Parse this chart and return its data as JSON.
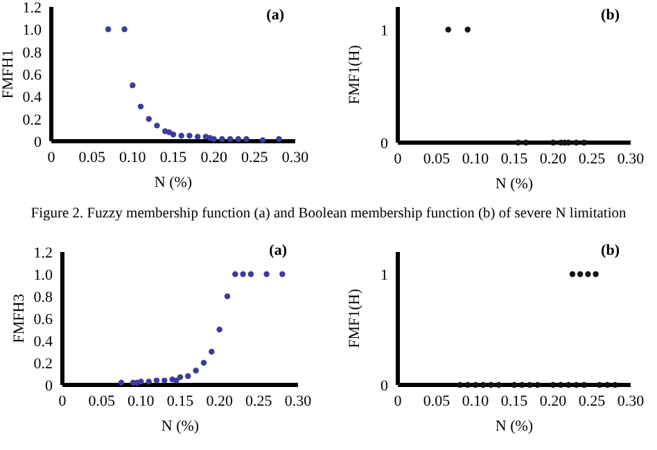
{
  "chart_data": [
    {
      "type": "scatter",
      "xlabel": "N (%)",
      "ylabel": "FMFH1",
      "annotations": [
        "(a)",
        "Figure 2. Fuzzy membership function (a) and Boolean membership function (b) of severe N limitation"
      ],
      "marker": "circle",
      "grid": false,
      "xlim": [
        0,
        0.3
      ],
      "ylim": [
        0,
        1.2
      ],
      "xticks": [
        0,
        0.05,
        {
          "value": 0.1,
          "label": "0.10"
        },
        0.15,
        {
          "value": 0.2,
          "label": "0.20"
        },
        0.25,
        {
          "value": 0.3,
          "label": "0.30"
        }
      ],
      "yticks": [
        0,
        0.2,
        0.4,
        0.6,
        0.8,
        {
          "value": 1,
          "label": "1.0"
        },
        1.2
      ],
      "series": [
        {
          "color": "#3b3b9e",
          "x": [
            0.07,
            0.09,
            0.1,
            0.11,
            0.12,
            0.13,
            0.14,
            0.145,
            0.15,
            0.16,
            0.17,
            0.18,
            0.19,
            0.195,
            0.2,
            0.21,
            0.22,
            0.23,
            0.24,
            0.26,
            0.28
          ],
          "values": [
            1.0,
            1.0,
            0.5,
            0.31,
            0.2,
            0.14,
            0.09,
            0.08,
            0.06,
            0.05,
            0.05,
            0.04,
            0.04,
            0.03,
            0.02,
            0.02,
            0.02,
            0.02,
            0.02,
            0.01,
            0.02
          ]
        }
      ]
    },
    {
      "type": "scatter",
      "xlabel": "N (%)",
      "ylabel": "FMF1(H)",
      "annotations": [
        "(b)"
      ],
      "marker": "circle",
      "grid": false,
      "xlim": [
        0,
        0.3
      ],
      "ylim": [
        0,
        1.2
      ],
      "xticks": [
        0,
        0.05,
        {
          "value": 0.1,
          "label": "0.10"
        },
        0.15,
        {
          "value": 0.2,
          "label": "0.20"
        },
        0.25,
        {
          "value": 0.3,
          "label": "0.30"
        }
      ],
      "yticks": [
        0,
        1
      ],
      "series": [
        {
          "color": "#111111",
          "x": [
            0.065,
            0.09,
            0.155,
            0.165,
            0.2,
            0.21,
            0.215,
            0.22,
            0.23,
            0.24
          ],
          "values": [
            1,
            1,
            0,
            0,
            0,
            0,
            0,
            0,
            0,
            0
          ]
        }
      ]
    },
    {
      "type": "scatter",
      "xlabel": "N (%)",
      "ylabel": "FMFH3",
      "annotations": [
        "(a)"
      ],
      "marker": "circle",
      "grid": false,
      "xlim": [
        0,
        0.3
      ],
      "ylim": [
        0,
        1.2
      ],
      "xticks": [
        0,
        0.05,
        {
          "value": 0.1,
          "label": "0.10"
        },
        0.15,
        {
          "value": 0.2,
          "label": "0.20"
        },
        0.25,
        {
          "value": 0.3,
          "label": "0.30"
        }
      ],
      "yticks": [
        0,
        0.2,
        0.4,
        0.6,
        0.8,
        {
          "value": 1,
          "label": "1.0"
        },
        1.2
      ],
      "series": [
        {
          "color": "#3b3b9e",
          "x": [
            0.075,
            0.09,
            0.095,
            0.1,
            0.11,
            0.12,
            0.13,
            0.14,
            0.145,
            0.15,
            0.16,
            0.17,
            0.18,
            0.19,
            0.2,
            0.21,
            0.22,
            0.23,
            0.24,
            0.26,
            0.28
          ],
          "values": [
            0.02,
            0.02,
            0.02,
            0.03,
            0.03,
            0.04,
            0.04,
            0.05,
            0.04,
            0.07,
            0.08,
            0.13,
            0.2,
            0.3,
            0.5,
            0.8,
            1.0,
            1.0,
            1.0,
            1.0,
            1.0
          ]
        }
      ]
    },
    {
      "type": "scatter",
      "xlabel": "N (%)",
      "ylabel": "FMF1(H)",
      "annotations": [
        "(b)"
      ],
      "marker": "circle",
      "grid": false,
      "xlim": [
        0,
        0.3
      ],
      "ylim": [
        0,
        1.2
      ],
      "xticks": [
        0,
        0.05,
        {
          "value": 0.1,
          "label": "0.10"
        },
        0.15,
        {
          "value": 0.2,
          "label": "0.20"
        },
        0.25,
        {
          "value": 0.3,
          "label": "0.30"
        }
      ],
      "yticks": [
        0,
        1
      ],
      "series": [
        {
          "color": "#111111",
          "x": [
            0.08,
            0.09,
            0.1,
            0.11,
            0.12,
            0.13,
            0.15,
            0.16,
            0.17,
            0.18,
            0.2,
            0.21,
            0.22,
            0.23,
            0.24,
            0.26,
            0.27,
            0.28,
            0.225,
            0.235,
            0.245,
            0.255
          ],
          "values": [
            0,
            0,
            0,
            0,
            0,
            0,
            0,
            0,
            0,
            0,
            0,
            0,
            0,
            0,
            0,
            0,
            0,
            0,
            1,
            1,
            1,
            1
          ]
        }
      ]
    }
  ]
}
